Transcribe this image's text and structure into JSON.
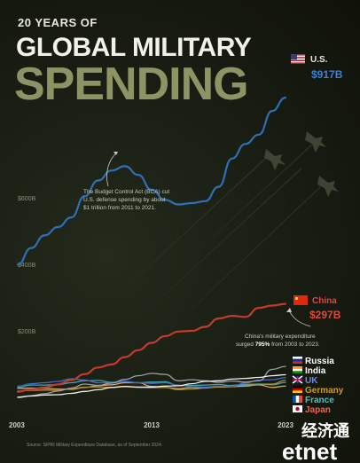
{
  "header": {
    "line1": "20 YEARS OF",
    "line2": "GLOBAL MILITARY",
    "line3": "SPENDING"
  },
  "annotations": {
    "us_note": [
      "The Budget Control Act (BCA) cut",
      "U.S. defense spending by about",
      "$1 trillion from 2011 to 2021."
    ],
    "china_note_1": "China's military expenditure",
    "china_note_2_prefix": "surged ",
    "china_note_2_bold": "795%",
    "china_note_2_suffix": " from 2003 to 2023."
  },
  "source": "Source: SIPRI Military Expenditure Database, as of September 2024.",
  "watermark": {
    "cn": "经济通",
    "en": "etnet"
  },
  "colors": {
    "background": "#15180f",
    "us": "#2f6fb8",
    "china": "#c43a32",
    "russia": "#9aa0a8",
    "india": "#f0f0f0",
    "uk": "#4a66c8",
    "germany": "#b08a2a",
    "france": "#3aa8b0",
    "japan": "#d9a46a"
  },
  "chart_data": {
    "type": "line",
    "x": [
      2003,
      2004,
      2005,
      2006,
      2007,
      2008,
      2009,
      2010,
      2011,
      2012,
      2013,
      2014,
      2015,
      2016,
      2017,
      2018,
      2019,
      2020,
      2021,
      2022,
      2023
    ],
    "xticks": [
      "2003",
      "2013",
      "2023"
    ],
    "yticks": [
      "$200B",
      "$400B",
      "$600B"
    ],
    "ylim": [
      0,
      1000
    ],
    "xlim": [
      2003,
      2023
    ],
    "series": [
      {
        "name": "U.S.",
        "label_value": "$917B",
        "color_key": "us",
        "values": [
          415,
          465,
          503,
          528,
          557,
          621,
          668,
          698,
          711,
          685,
          640,
          610,
          596,
          600,
          606,
          649,
          734,
          778,
          806,
          877,
          917
        ]
      },
      {
        "name": "China",
        "label_value": "$297B",
        "color_key": "china",
        "values": [
          33,
          40,
          46,
          55,
          68,
          86,
          106,
          115,
          137,
          158,
          180,
          200,
          214,
          216,
          228,
          253,
          261,
          258,
          285,
          292,
          297
        ]
      },
      {
        "name": "Russia",
        "color_key": "russia",
        "values": [
          17,
          21,
          27,
          35,
          44,
          56,
          52,
          59,
          70,
          81,
          88,
          85,
          66,
          69,
          66,
          61,
          65,
          62,
          66,
          100,
          109
        ]
      },
      {
        "name": "India",
        "color_key": "india",
        "values": [
          16,
          20,
          23,
          24,
          28,
          34,
          39,
          46,
          49,
          47,
          47,
          50,
          51,
          57,
          64,
          66,
          71,
          73,
          76,
          81,
          84
        ]
      },
      {
        "name": "UK",
        "color_key": "uk",
        "values": [
          50,
          57,
          60,
          64,
          72,
          68,
          60,
          60,
          63,
          60,
          58,
          60,
          53,
          48,
          47,
          50,
          49,
          59,
          68,
          69,
          75
        ]
      },
      {
        "name": "Germany",
        "color_key": "germany",
        "values": [
          35,
          37,
          38,
          37,
          42,
          47,
          47,
          46,
          48,
          46,
          45,
          46,
          39,
          41,
          44,
          48,
          52,
          55,
          56,
          56,
          67
        ]
      },
      {
        "name": "France",
        "color_key": "france",
        "values": [
          46,
          53,
          53,
          54,
          60,
          66,
          67,
          61,
          64,
          60,
          62,
          63,
          51,
          52,
          53,
          55,
          51,
          53,
          56,
          54,
          61
        ]
      },
      {
        "name": "Japan",
        "color_key": "japan",
        "values": [
          43,
          44,
          43,
          41,
          40,
          46,
          51,
          54,
          60,
          60,
          49,
          46,
          42,
          46,
          45,
          47,
          48,
          50,
          54,
          46,
          50
        ]
      }
    ]
  }
}
